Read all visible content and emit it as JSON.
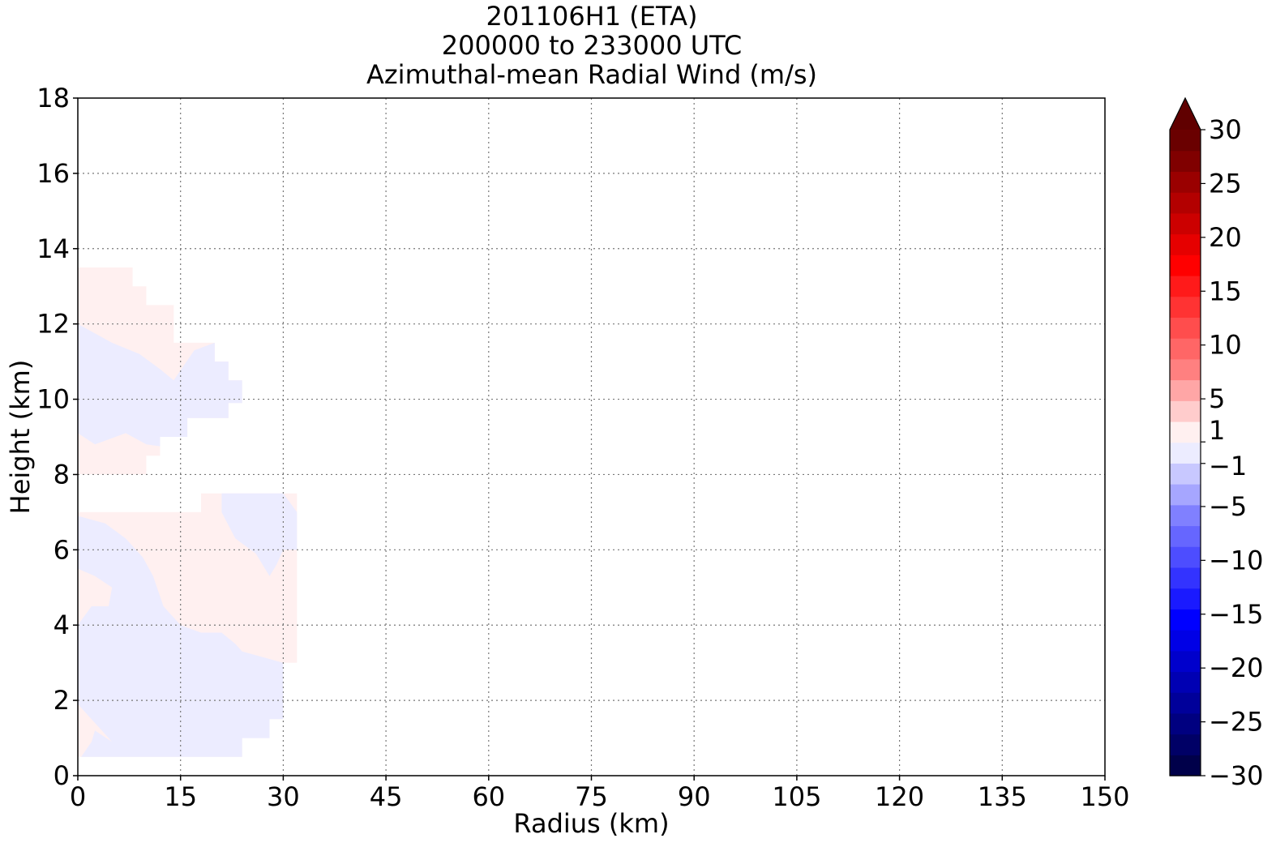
{
  "chart_data": {
    "type": "heatmap",
    "title_lines": [
      "201106H1 (ETA)",
      "200000 to 233000 UTC",
      "Azimuthal-mean Radial Wind (m/s)"
    ],
    "xlabel": "Radius (km)",
    "ylabel": "Height (km)",
    "xlim": [
      0,
      150
    ],
    "ylim": [
      0,
      18
    ],
    "x_ticks": [
      0,
      15,
      30,
      45,
      60,
      75,
      90,
      105,
      120,
      135,
      150
    ],
    "y_ticks": [
      0,
      2,
      4,
      6,
      8,
      10,
      12,
      14,
      16,
      18
    ],
    "grid": true,
    "grid_style": "dotted",
    "colorbar": {
      "min": -30,
      "max": 30,
      "extend": "max",
      "tick_values": [
        -30,
        -25,
        -20,
        -15,
        -10,
        -5,
        -1,
        1,
        5,
        10,
        15,
        20,
        25,
        30
      ],
      "tick_labels": [
        "−30",
        "−25",
        "−20",
        "−15",
        "−10",
        "−5",
        "−1",
        "1",
        "5",
        "10",
        "15",
        "20",
        "25",
        "30"
      ],
      "band_colors": [
        "#00004a",
        "#000066",
        "#000080",
        "#00009a",
        "#0000b3",
        "#0000cc",
        "#0000e6",
        "#0000ff",
        "#1a1aff",
        "#3333ff",
        "#4d4dff",
        "#6666ff",
        "#8080ff",
        "#a6a6ff",
        "#c8c8ff",
        "#ececff",
        "#fff0f0",
        "#ffcccc",
        "#ffa6a6",
        "#ff8080",
        "#ff6666",
        "#ff4d4d",
        "#ff3333",
        "#ff1a1a",
        "#ff0000",
        "#e60000",
        "#cc0000",
        "#b30000",
        "#9a0000",
        "#800000",
        "#6a0000"
      ],
      "extend_color": "#600000"
    },
    "regions": [
      {
        "name": "upper-positive",
        "sign": "positive",
        "value_range": [
          0,
          1
        ],
        "color": "#fff0f0",
        "outline": [
          [
            0.5,
            13.5
          ],
          [
            8,
            13.5
          ],
          [
            8,
            13
          ],
          [
            10,
            13
          ],
          [
            10,
            12.5
          ],
          [
            14,
            12.5
          ],
          [
            14,
            11.5
          ],
          [
            20,
            11.5
          ],
          [
            20,
            11
          ],
          [
            22,
            11
          ],
          [
            22,
            10.5
          ],
          [
            24,
            10.5
          ],
          [
            24,
            9.9
          ],
          [
            22,
            9.9
          ],
          [
            22,
            9.5
          ],
          [
            16,
            9.5
          ],
          [
            16,
            9
          ],
          [
            12,
            9
          ],
          [
            12,
            8.5
          ],
          [
            10,
            8.5
          ],
          [
            10,
            8
          ],
          [
            0,
            8
          ],
          [
            0,
            13.5
          ]
        ]
      },
      {
        "name": "upper-negative",
        "sign": "negative",
        "value_range": [
          -1,
          0
        ],
        "color": "#ececff",
        "outline": [
          [
            0,
            12
          ],
          [
            5,
            11.5
          ],
          [
            9,
            11.2
          ],
          [
            12,
            10.8
          ],
          [
            14,
            10.5
          ],
          [
            17,
            11.3
          ],
          [
            20,
            11.5
          ],
          [
            20,
            11
          ],
          [
            22,
            11
          ],
          [
            22,
            10.5
          ],
          [
            24,
            10.5
          ],
          [
            24,
            9.9
          ],
          [
            22,
            9.9
          ],
          [
            22,
            9.5
          ],
          [
            16,
            9.5
          ],
          [
            16,
            9
          ],
          [
            12,
            9
          ],
          [
            12,
            8.75
          ],
          [
            10,
            8.8
          ],
          [
            7,
            9.1
          ],
          [
            2.5,
            8.8
          ],
          [
            0,
            9.1
          ]
        ]
      },
      {
        "name": "lower-positive",
        "sign": "positive",
        "value_range": [
          0,
          1
        ],
        "color": "#fff0f0",
        "outline": [
          [
            0,
            7
          ],
          [
            18,
            7
          ],
          [
            18,
            7.5
          ],
          [
            32,
            7.5
          ],
          [
            32,
            3
          ],
          [
            30,
            3
          ],
          [
            30,
            1.5
          ],
          [
            28,
            1.5
          ],
          [
            28,
            1
          ],
          [
            24,
            1
          ],
          [
            24,
            0.5
          ],
          [
            0.5,
            0.5
          ],
          [
            0,
            0.5
          ]
        ]
      },
      {
        "name": "lower-negative",
        "sign": "negative",
        "value_range": [
          -1,
          0
        ],
        "color": "#ececff",
        "outline": [
          [
            0,
            6.9
          ],
          [
            4,
            6.7
          ],
          [
            7,
            6.3
          ],
          [
            9.5,
            5.8
          ],
          [
            11,
            5.3
          ],
          [
            12.5,
            4.5
          ],
          [
            15,
            4
          ],
          [
            18,
            3.8
          ],
          [
            21,
            3.8
          ],
          [
            23,
            3.5
          ],
          [
            24,
            3.3
          ],
          [
            26,
            3.2
          ],
          [
            30,
            3
          ],
          [
            30,
            1.5
          ],
          [
            28,
            1.5
          ],
          [
            28,
            1
          ],
          [
            24,
            1
          ],
          [
            24,
            0.5
          ],
          [
            0.5,
            0.5
          ],
          [
            2,
            0.9
          ],
          [
            2.5,
            1.2
          ],
          [
            5,
            0.9
          ],
          [
            3.5,
            1.2
          ],
          [
            0,
            1.9
          ],
          [
            0,
            4
          ],
          [
            2,
            4.5
          ],
          [
            4.5,
            4.5
          ],
          [
            5,
            5
          ],
          [
            2.5,
            5.3
          ],
          [
            0,
            5.5
          ]
        ]
      },
      {
        "name": "upper-right-negative",
        "sign": "negative",
        "value_range": [
          -1,
          0
        ],
        "color": "#ececff",
        "outline": [
          [
            21,
            7.5
          ],
          [
            30,
            7.5
          ],
          [
            32,
            7
          ],
          [
            32,
            6
          ],
          [
            30,
            6
          ],
          [
            29,
            5.6
          ],
          [
            28,
            5.3
          ],
          [
            26,
            5.9
          ],
          [
            23,
            6.3
          ],
          [
            21,
            7
          ]
        ]
      }
    ]
  }
}
